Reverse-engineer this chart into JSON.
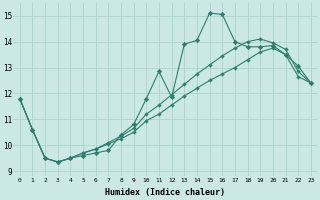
{
  "xlabel": "Humidex (Indice chaleur)",
  "bg_color": "#cce8e4",
  "grid_color": "#aad4cc",
  "line_color": "#2e7d6e",
  "xlim": [
    -0.5,
    23.5
  ],
  "ylim": [
    8.8,
    15.5
  ],
  "xticks": [
    0,
    1,
    2,
    3,
    4,
    5,
    6,
    7,
    8,
    9,
    10,
    11,
    12,
    13,
    14,
    15,
    16,
    17,
    18,
    19,
    20,
    21,
    22,
    23
  ],
  "yticks": [
    9,
    10,
    11,
    12,
    13,
    14,
    15
  ],
  "line1_x": [
    0,
    1,
    2,
    3,
    4,
    5,
    6,
    7,
    8,
    9,
    10,
    11,
    12,
    13,
    14,
    15,
    16,
    17,
    18,
    19,
    20,
    21,
    22,
    23
  ],
  "line1_y": [
    11.8,
    10.6,
    9.5,
    9.35,
    9.5,
    9.6,
    9.7,
    9.8,
    10.4,
    10.8,
    11.8,
    12.85,
    11.85,
    13.9,
    14.05,
    15.1,
    15.05,
    14.0,
    13.8,
    13.8,
    13.85,
    13.5,
    13.05,
    12.4
  ],
  "line2_x": [
    0,
    1,
    2,
    3,
    4,
    5,
    6,
    7,
    8,
    9,
    10,
    11,
    12,
    13,
    14,
    15,
    16,
    17,
    18,
    19,
    20,
    21,
    22,
    23
  ],
  "line2_y": [
    11.8,
    10.6,
    9.5,
    9.35,
    9.5,
    9.7,
    9.85,
    10.1,
    10.35,
    10.65,
    11.2,
    11.55,
    11.95,
    12.35,
    12.75,
    13.1,
    13.45,
    13.75,
    14.0,
    14.1,
    13.95,
    13.7,
    12.85,
    12.4
  ],
  "line3_x": [
    0,
    1,
    2,
    3,
    4,
    5,
    6,
    7,
    8,
    9,
    10,
    11,
    12,
    13,
    14,
    15,
    16,
    17,
    18,
    19,
    20,
    21,
    22,
    23
  ],
  "line3_y": [
    11.8,
    10.6,
    9.5,
    9.35,
    9.5,
    9.7,
    9.85,
    10.05,
    10.25,
    10.5,
    10.95,
    11.2,
    11.55,
    11.9,
    12.2,
    12.5,
    12.75,
    13.0,
    13.3,
    13.6,
    13.75,
    13.5,
    12.65,
    12.4
  ]
}
